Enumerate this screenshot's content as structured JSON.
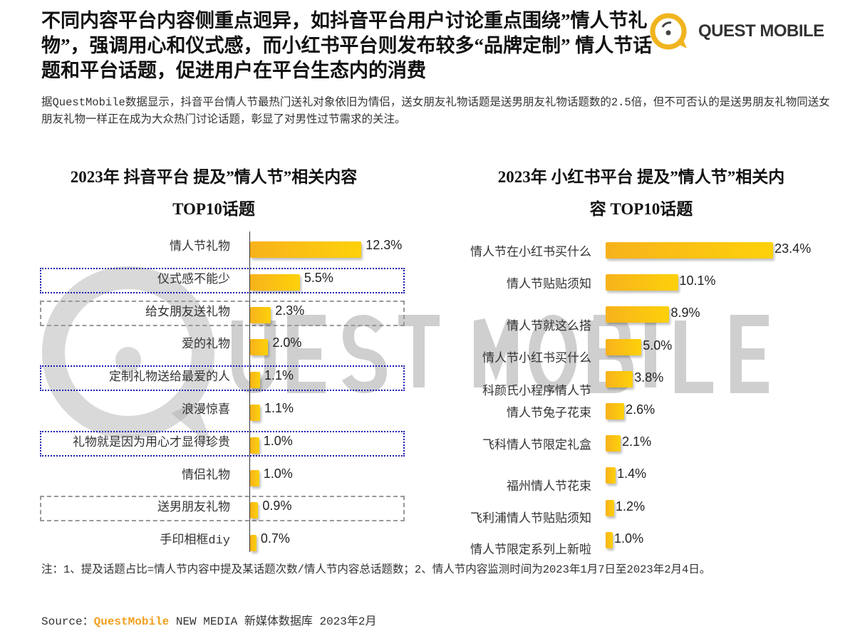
{
  "title": "不同内容平台内容侧重点迥异，如抖音平台用户讨论重点围绕”情人节礼物”，强调用心和仪式感，而小红书平台则发布较多“品牌定制” 情人节话题和平台话题，促进用户在平台生态内的消费",
  "logo": {
    "text": "QUEST MOBILE",
    "color": "#f0b41e"
  },
  "subtitle": "据QuestMobile数据显示，抖音平台情人节最热门送礼对象依旧为情侣，送女朋友礼物话题是送男朋友礼物话题数的2.5倍，但不可否认的是送男朋友礼物同送女朋友礼物一样正在成为大众热门讨论话题，彰显了对男性过节需求的关注。",
  "watermark": "QUEST MOBILE",
  "chart_data": [
    {
      "type": "bar",
      "orientation": "horizontal",
      "title": "2023年 抖音平台 提及”情人节”相关内容TOP10话题",
      "unit": "%",
      "categories": [
        "情人节礼物",
        "仪式感不能少",
        "给女朋友送礼物",
        "爱的礼物",
        "定制礼物送给最爱的人",
        "浪漫惊喜",
        "礼物就是因为用心才显得珍贵",
        "情侣礼物",
        "送男朋友礼物",
        "手印相框diy"
      ],
      "values": [
        12.3,
        5.5,
        2.3,
        2.0,
        1.1,
        1.1,
        1.0,
        1.0,
        0.9,
        0.7
      ],
      "labels": [
        "12.3%",
        "5.5%",
        "2.3%",
        "2.0%",
        "1.1%",
        "1.1%",
        "1.0%",
        "1.0%",
        "0.9%",
        "0.7%"
      ],
      "highlight": [
        "",
        "blue",
        "gray",
        "",
        "blue",
        "",
        "blue",
        "",
        "gray",
        ""
      ],
      "bar_color": "#f8b21c"
    },
    {
      "type": "bar",
      "orientation": "horizontal",
      "title": "2023年 小红书平台 提及”情人节”相关内容 TOP10话题",
      "unit": "%",
      "categories": [
        "情人节在小红书买什么",
        "情人节贴贴须知",
        "情人节就这么搭",
        "情人节小红书买什么",
        "科颜氏小程序情人节",
        "情人节兔子花束",
        "飞科情人节限定礼盒",
        "福州情人节花束",
        "飞利浦情人节贴贴须知",
        "情人节限定系列上新啦"
      ],
      "values": [
        23.4,
        10.1,
        8.9,
        5.0,
        3.8,
        2.6,
        2.1,
        1.4,
        1.2,
        1.0
      ],
      "labels": [
        "23.4%",
        "10.1%",
        "8.9%",
        "5.0%",
        "3.8%",
        "2.6%",
        "2.1%",
        "1.4%",
        "1.2%",
        "1.0%"
      ],
      "bar_color": "#f8b21c"
    }
  ],
  "chart_titles": [
    {
      "line1": "2023年 抖音平台 提及”情人节”相关内容",
      "line2": "TOP10话题"
    },
    {
      "line1": "2023年 小红书平台 提及”情人节”相关内",
      "line2": "容 TOP10话题"
    }
  ],
  "note": "注：1、提及话题占比=情人节内容中提及某话题次数/情人节内容总话题数；2、情人节内容监测时间为2023年1月7日至2023年2月4日。",
  "source": {
    "prefix": "Source：",
    "brand": "QuestMobile",
    "rest": " NEW MEDIA 新媒体数据库 2023年2月"
  }
}
